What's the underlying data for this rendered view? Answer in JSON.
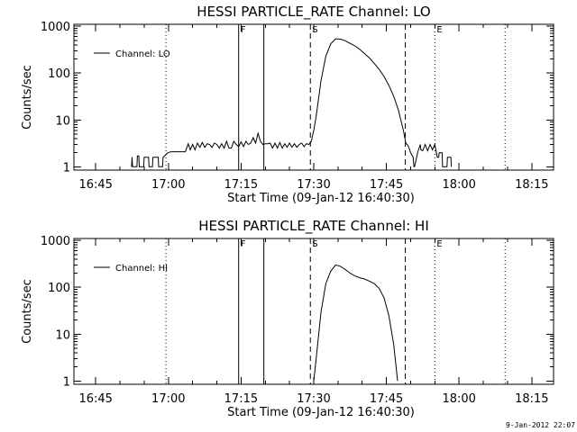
{
  "chart_data": [
    {
      "type": "line",
      "title": "HESSI PARTICLE_RATE Channel: LO",
      "xlabel": "Start Time (09-Jan-12 16:40:30)",
      "ylabel": "Counts/sec",
      "x_ticks": [
        "16:45",
        "17:00",
        "17:15",
        "17:30",
        "17:45",
        "18:00",
        "18:15"
      ],
      "y_ticks": [
        "1",
        "10",
        "100",
        "1000"
      ],
      "yscale": "log",
      "xlim_minutes": [
        0,
        99
      ],
      "ylim": [
        0.85,
        1100
      ],
      "legend": "Channel: LO",
      "legend_position": "top-left",
      "markers": [
        {
          "label": "",
          "style": "dotted",
          "minute": 19.0
        },
        {
          "label": "F",
          "style": "solid",
          "minute": 34.0
        },
        {
          "label": "",
          "style": "solid",
          "minute": 39.2
        },
        {
          "label": "S",
          "style": "dashed",
          "minute": 48.8
        },
        {
          "label": "",
          "style": "dashed",
          "minute": 68.4
        },
        {
          "label": "E",
          "style": "dotted",
          "minute": 74.5
        },
        {
          "label": "",
          "style": "dotted",
          "minute": 89.0
        }
      ],
      "series": [
        {
          "name": "Channel: LO",
          "minutes": [
            11.9,
            12.0,
            12.1,
            13.0,
            13.1,
            13.4,
            13.5,
            14.4,
            14.5,
            15.4,
            15.5,
            16.2,
            16.3,
            17.4,
            17.5,
            18.3,
            18.4,
            19.4,
            20.0,
            21.0,
            22.0,
            23.0,
            23.6,
            24.0,
            24.5,
            25.0,
            25.5,
            26.0,
            26.5,
            27.0,
            27.5,
            28.0,
            28.5,
            29.0,
            29.5,
            30.0,
            30.5,
            31.0,
            31.5,
            32.0,
            32.5,
            33.0,
            33.5,
            34.0,
            34.5,
            35.0,
            35.5,
            36.0,
            36.5,
            37.0,
            37.5,
            38.0,
            38.5,
            39.0,
            39.5,
            40.0,
            40.5,
            41.0,
            41.5,
            42.0,
            42.5,
            43.0,
            43.5,
            44.0,
            44.5,
            45.0,
            45.5,
            46.0,
            46.5,
            47.0,
            47.5,
            48.0,
            48.5,
            49.0,
            49.5,
            50.0,
            51.0,
            52.0,
            53.0,
            54.0,
            55.0,
            56.0,
            57.0,
            58.0,
            59.0,
            60.0,
            61.0,
            62.0,
            63.0,
            64.0,
            65.0,
            66.0,
            67.0,
            68.0,
            68.5,
            69.0,
            69.5,
            70.0,
            70.2,
            70.3,
            71.0,
            71.5,
            71.6,
            72.0,
            72.5,
            73.0,
            73.5,
            74.0,
            74.5,
            75.0,
            75.3,
            75.4,
            76.0,
            76.1,
            77.0,
            77.1,
            77.8,
            77.9
          ],
          "values": [
            1,
            1.6,
            1,
            1,
            1.7,
            1.7,
            1,
            1,
            1.6,
            1.6,
            1,
            1,
            1.6,
            1.6,
            1,
            1,
            1.6,
            2.0,
            2.1,
            2.1,
            2.1,
            2.1,
            3.1,
            2.3,
            3.0,
            2.3,
            3.2,
            2.6,
            3.3,
            2.6,
            3.1,
            3.0,
            2.6,
            3.2,
            3.0,
            2.5,
            3.1,
            2.5,
            3.5,
            2.5,
            2.5,
            3.5,
            3.0,
            2.7,
            3.4,
            2.7,
            3.5,
            3.0,
            3.2,
            4.2,
            3.2,
            5.2,
            3.5,
            3.0,
            3.1,
            3.1,
            3.2,
            2.5,
            3.2,
            2.5,
            3.3,
            2.5,
            3.1,
            2.6,
            3.2,
            2.6,
            3.1,
            2.6,
            3.0,
            3.2,
            2.7,
            3.1,
            3.0,
            3.5,
            6.0,
            12,
            70,
            230,
            420,
            540,
            530,
            490,
            430,
            380,
            320,
            260,
            210,
            160,
            120,
            85,
            55,
            32,
            16,
            6,
            3.2,
            2.8,
            2.0,
            1.6,
            1.0,
            1.0,
            2.1,
            3.0,
            2.3,
            2.2,
            3.0,
            2.2,
            3.0,
            2.3,
            3.0,
            1.6,
            1.6,
            2.0,
            2.0,
            1.0,
            1.0,
            1.6,
            1.6,
            1.0
          ]
        }
      ]
    },
    {
      "type": "line",
      "title": "HESSI PARTICLE_RATE Channel: HI",
      "xlabel": "Start Time (09-Jan-12 16:40:30)",
      "ylabel": "Counts/sec",
      "x_ticks": [
        "16:45",
        "17:00",
        "17:15",
        "17:30",
        "17:45",
        "18:00",
        "18:15"
      ],
      "y_ticks": [
        "1",
        "10",
        "100",
        "1000"
      ],
      "yscale": "log",
      "xlim_minutes": [
        0,
        99
      ],
      "ylim": [
        0.85,
        1100
      ],
      "legend": "Channel: HI",
      "legend_position": "top-left",
      "markers": [
        {
          "label": "",
          "style": "dotted",
          "minute": 19.0
        },
        {
          "label": "F",
          "style": "solid",
          "minute": 34.0
        },
        {
          "label": "",
          "style": "solid",
          "minute": 39.2
        },
        {
          "label": "S",
          "style": "dashed",
          "minute": 48.8
        },
        {
          "label": "",
          "style": "dashed",
          "minute": 68.4
        },
        {
          "label": "E",
          "style": "dotted",
          "minute": 74.5
        },
        {
          "label": "",
          "style": "dotted",
          "minute": 89.0
        }
      ],
      "series": [
        {
          "name": "Channel: HI",
          "minutes": [
            49.5,
            50.0,
            51.0,
            52.0,
            53.0,
            54.0,
            55.0,
            56.0,
            57.0,
            58.0,
            59.0,
            60.0,
            61.0,
            62.0,
            63.0,
            64.0,
            65.0,
            66.0,
            66.8
          ],
          "values": [
            1,
            3,
            30,
            120,
            220,
            300,
            280,
            240,
            200,
            175,
            160,
            150,
            135,
            120,
            95,
            60,
            25,
            6,
            1
          ]
        }
      ]
    }
  ],
  "timestamp": "9-Jan-2012 22:07"
}
